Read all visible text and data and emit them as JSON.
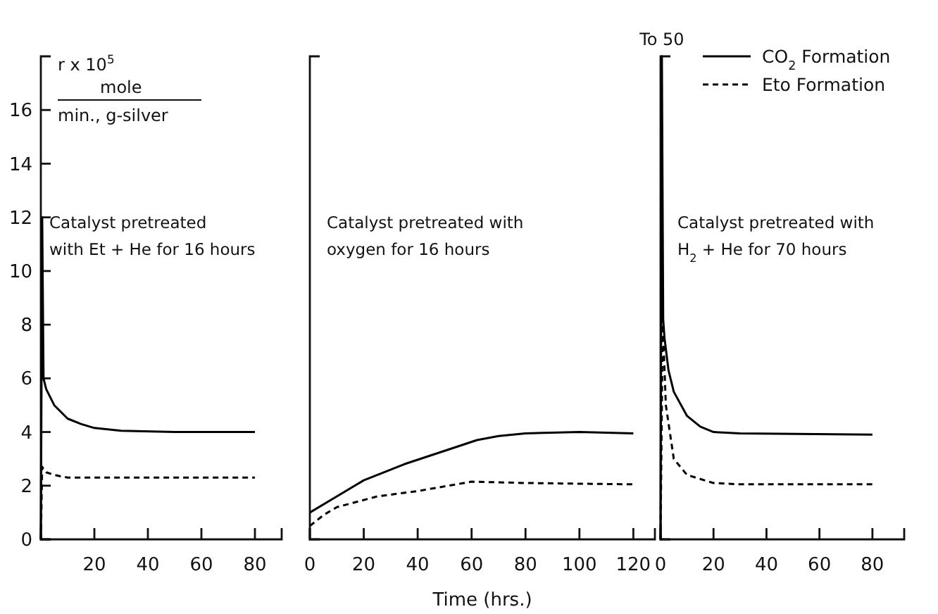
{
  "chart_data": [
    {
      "type": "line",
      "ylabel": "r x 10$^{5}$\nmole\nmin., g-silver",
      "xlim": [
        0,
        90
      ],
      "xticks": [
        20,
        40,
        60,
        80
      ],
      "ylim": [
        0,
        18
      ],
      "yticks": [
        0,
        2,
        4,
        6,
        8,
        10,
        12,
        14,
        16
      ],
      "grid": false,
      "legend": false,
      "annotations": [
        "Catalyst pretreated with Et + He for 16 hours"
      ],
      "series": [
        {
          "color": "#000000",
          "line_style": "solid",
          "x": [
            0,
            0.5,
            1,
            2,
            5,
            10,
            15,
            20,
            30,
            50,
            80
          ],
          "values": [
            0,
            12,
            6,
            5.6,
            5,
            4.5,
            4.3,
            4.15,
            4.05,
            4,
            4
          ]
        },
        {
          "color": "#000000",
          "line_style": "dashed",
          "x": [
            0,
            0.5,
            2,
            5,
            10,
            20,
            80
          ],
          "values": [
            0,
            2.7,
            2.5,
            2.4,
            2.3,
            2.3,
            2.3
          ]
        }
      ]
    },
    {
      "type": "line",
      "xlabel": "Time (hrs.)",
      "xlim": [
        0,
        128
      ],
      "xticks": [
        0,
        20,
        40,
        60,
        80,
        100,
        120
      ],
      "ylim": [
        0,
        18
      ],
      "tick_labels": "x",
      "grid": false,
      "legend": false,
      "annotations": [
        "Catalyst pretreated with oxygen for 16 hours"
      ],
      "series": [
        {
          "color": "#000000",
          "line_style": "solid",
          "x": [
            0,
            10,
            20,
            35,
            50,
            62,
            70,
            80,
            100,
            120
          ],
          "values": [
            1.0,
            1.6,
            2.2,
            2.8,
            3.3,
            3.7,
            3.85,
            3.95,
            4.0,
            3.95
          ]
        },
        {
          "color": "#000000",
          "line_style": "dashed",
          "x": [
            0,
            5,
            10,
            25,
            40,
            60,
            80,
            120
          ],
          "values": [
            0.5,
            0.9,
            1.2,
            1.6,
            1.8,
            2.15,
            2.1,
            2.05
          ]
        }
      ]
    },
    {
      "type": "line",
      "xlim": [
        0,
        92
      ],
      "xticks": [
        0,
        20,
        40,
        60,
        80
      ],
      "ylim": [
        0,
        18
      ],
      "tick_labels": "x",
      "grid": false,
      "legend": "top right",
      "annotations": [
        {
          "text": "To 50",
          "x": 0.5,
          "y": 18
        },
        "Catalyst pretreated with H$_{2}$ + He for 70 hours"
      ],
      "series": [
        {
          "name": "CO$_{2}$ Formation",
          "color": "#000000",
          "line_style": "solid",
          "x": [
            0,
            0.5,
            1,
            1.5,
            3,
            5,
            10,
            15,
            20,
            30,
            80
          ],
          "values": [
            0,
            18,
            8.2,
            7.5,
            6.3,
            5.5,
            4.6,
            4.2,
            4.0,
            3.95,
            3.9
          ]
        },
        {
          "name": "Eto Formation",
          "color": "#000000",
          "line_style": "dashed",
          "x": [
            0,
            0.8,
            2,
            5,
            10,
            20,
            30,
            80
          ],
          "values": [
            0,
            8.2,
            5,
            3,
            2.4,
            2.1,
            2.05,
            2.05
          ]
        }
      ]
    }
  ]
}
